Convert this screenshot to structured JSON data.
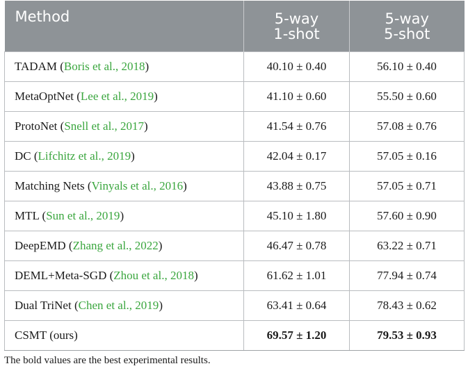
{
  "header": {
    "method": "Method",
    "col1_line1": "5-way",
    "col1_line2": "1-shot",
    "col2_line1": "5-way",
    "col2_line2": "5-shot"
  },
  "rows": [
    {
      "method": "TADAM",
      "cite": "Boris et al., 2018",
      "v1": "40.10 ± 0.40",
      "v2": "56.10 ± 0.40"
    },
    {
      "method": "MetaOptNet",
      "cite": "Lee et al., 2019",
      "v1": "41.10 ± 0.60",
      "v2": "55.50 ± 0.60"
    },
    {
      "method": "ProtoNet",
      "cite": "Snell et al., 2017",
      "v1": "41.54 ± 0.76",
      "v2": "57.08 ± 0.76"
    },
    {
      "method": "DC",
      "cite": "Lifchitz et al., 2019",
      "v1": "42.04 ± 0.17",
      "v2": "57.05 ± 0.16"
    },
    {
      "method": "Matching Nets",
      "cite": "Vinyals et al., 2016",
      "v1": "43.88 ± 0.75",
      "v2": "57.05 ± 0.71"
    },
    {
      "method": "MTL",
      "cite": "Sun et al., 2019",
      "v1": "45.10 ± 1.80",
      "v2": "57.60 ± 0.90"
    },
    {
      "method": "DeepEMD",
      "cite": "Zhang et al., 2022",
      "v1": "46.47 ± 0.78",
      "v2": "63.22 ± 0.71"
    },
    {
      "method": "DEML+Meta-SGD",
      "cite": "Zhou et al., 2018",
      "v1": "61.62 ± 1.01",
      "v2": "77.94 ± 0.74"
    },
    {
      "method": "Dual TriNet",
      "cite": "Chen et al., 2019",
      "v1": "63.41 ± 0.64",
      "v2": "78.43 ± 0.62"
    }
  ],
  "last_row": {
    "method": "CSMT (ours)",
    "v1": "69.57 ± 1.20",
    "v2": "79.53 ± 0.93"
  },
  "footnote": "The bold values are the best experimental results."
}
